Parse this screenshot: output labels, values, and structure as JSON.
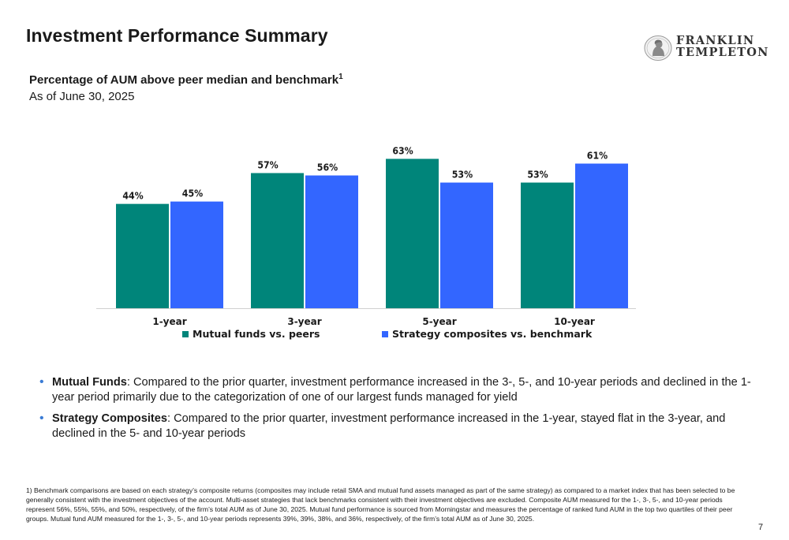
{
  "header": {
    "title": "Investment Performance Summary",
    "logo_line1": "FRANKLIN",
    "logo_line2": "TEMPLETON"
  },
  "section": {
    "subtitle": "Percentage of AUM above peer median and benchmark",
    "subtitle_sup": "1",
    "as_of": "As of June 30, 2025"
  },
  "colors": {
    "mutual_funds": "#00857a",
    "strategy": "#3366ff",
    "bullet": "#3a7bd5"
  },
  "chart_data": {
    "type": "bar",
    "categories": [
      "1-year",
      "3-year",
      "5-year",
      "10-year"
    ],
    "series": [
      {
        "name": "Mutual funds vs. peers",
        "values": [
          44,
          57,
          63,
          53
        ],
        "labels": [
          "44%",
          "57%",
          "63%",
          "53%"
        ],
        "color": "#00857a"
      },
      {
        "name": "Strategy composites vs. benchmark",
        "values": [
          45,
          56,
          53,
          61
        ],
        "labels": [
          "45%",
          "56%",
          "53%",
          "61%"
        ],
        "color": "#3366ff"
      }
    ],
    "ylim": [
      0,
      70
    ],
    "grid": false,
    "legend_position": "bottom"
  },
  "bullets": [
    {
      "lead": "Mutual Funds",
      "text": ": Compared to the prior quarter, investment performance increased in the 3-, 5-, and 10-year periods and declined in the 1-year period primarily due to the categorization of one of our largest funds managed for yield"
    },
    {
      "lead": "Strategy Composites",
      "text": ": Compared to the prior quarter, investment performance increased in the 1-year, stayed flat in the 3-year, and declined in the 5- and 10-year periods"
    }
  ],
  "footnote": "1) Benchmark comparisons are based on each strategy’s composite returns (composites may include retail SMA and mutual fund assets managed as part of the same strategy) as compared to a market index that has been selected to be generally consistent with the investment objectives of the account. Multi-asset strategies that lack benchmarks consistent with their investment objectives are excluded. Composite AUM measured for the 1-, 3-, 5-, and 10-year periods represent 56%, 55%, 55%, and 50%, respectively, of the firm’s total AUM as of June 30, 2025. Mutual fund performance is sourced from Morningstar and measures the percentage of ranked fund AUM in the top two quartiles of their peer groups. Mutual fund AUM measured for the 1-, 3-, 5-, and 10-year periods represents 39%, 39%, 38%, and 36%, respectively, of the firm’s total AUM as of June 30, 2025.",
  "page_number": "7"
}
